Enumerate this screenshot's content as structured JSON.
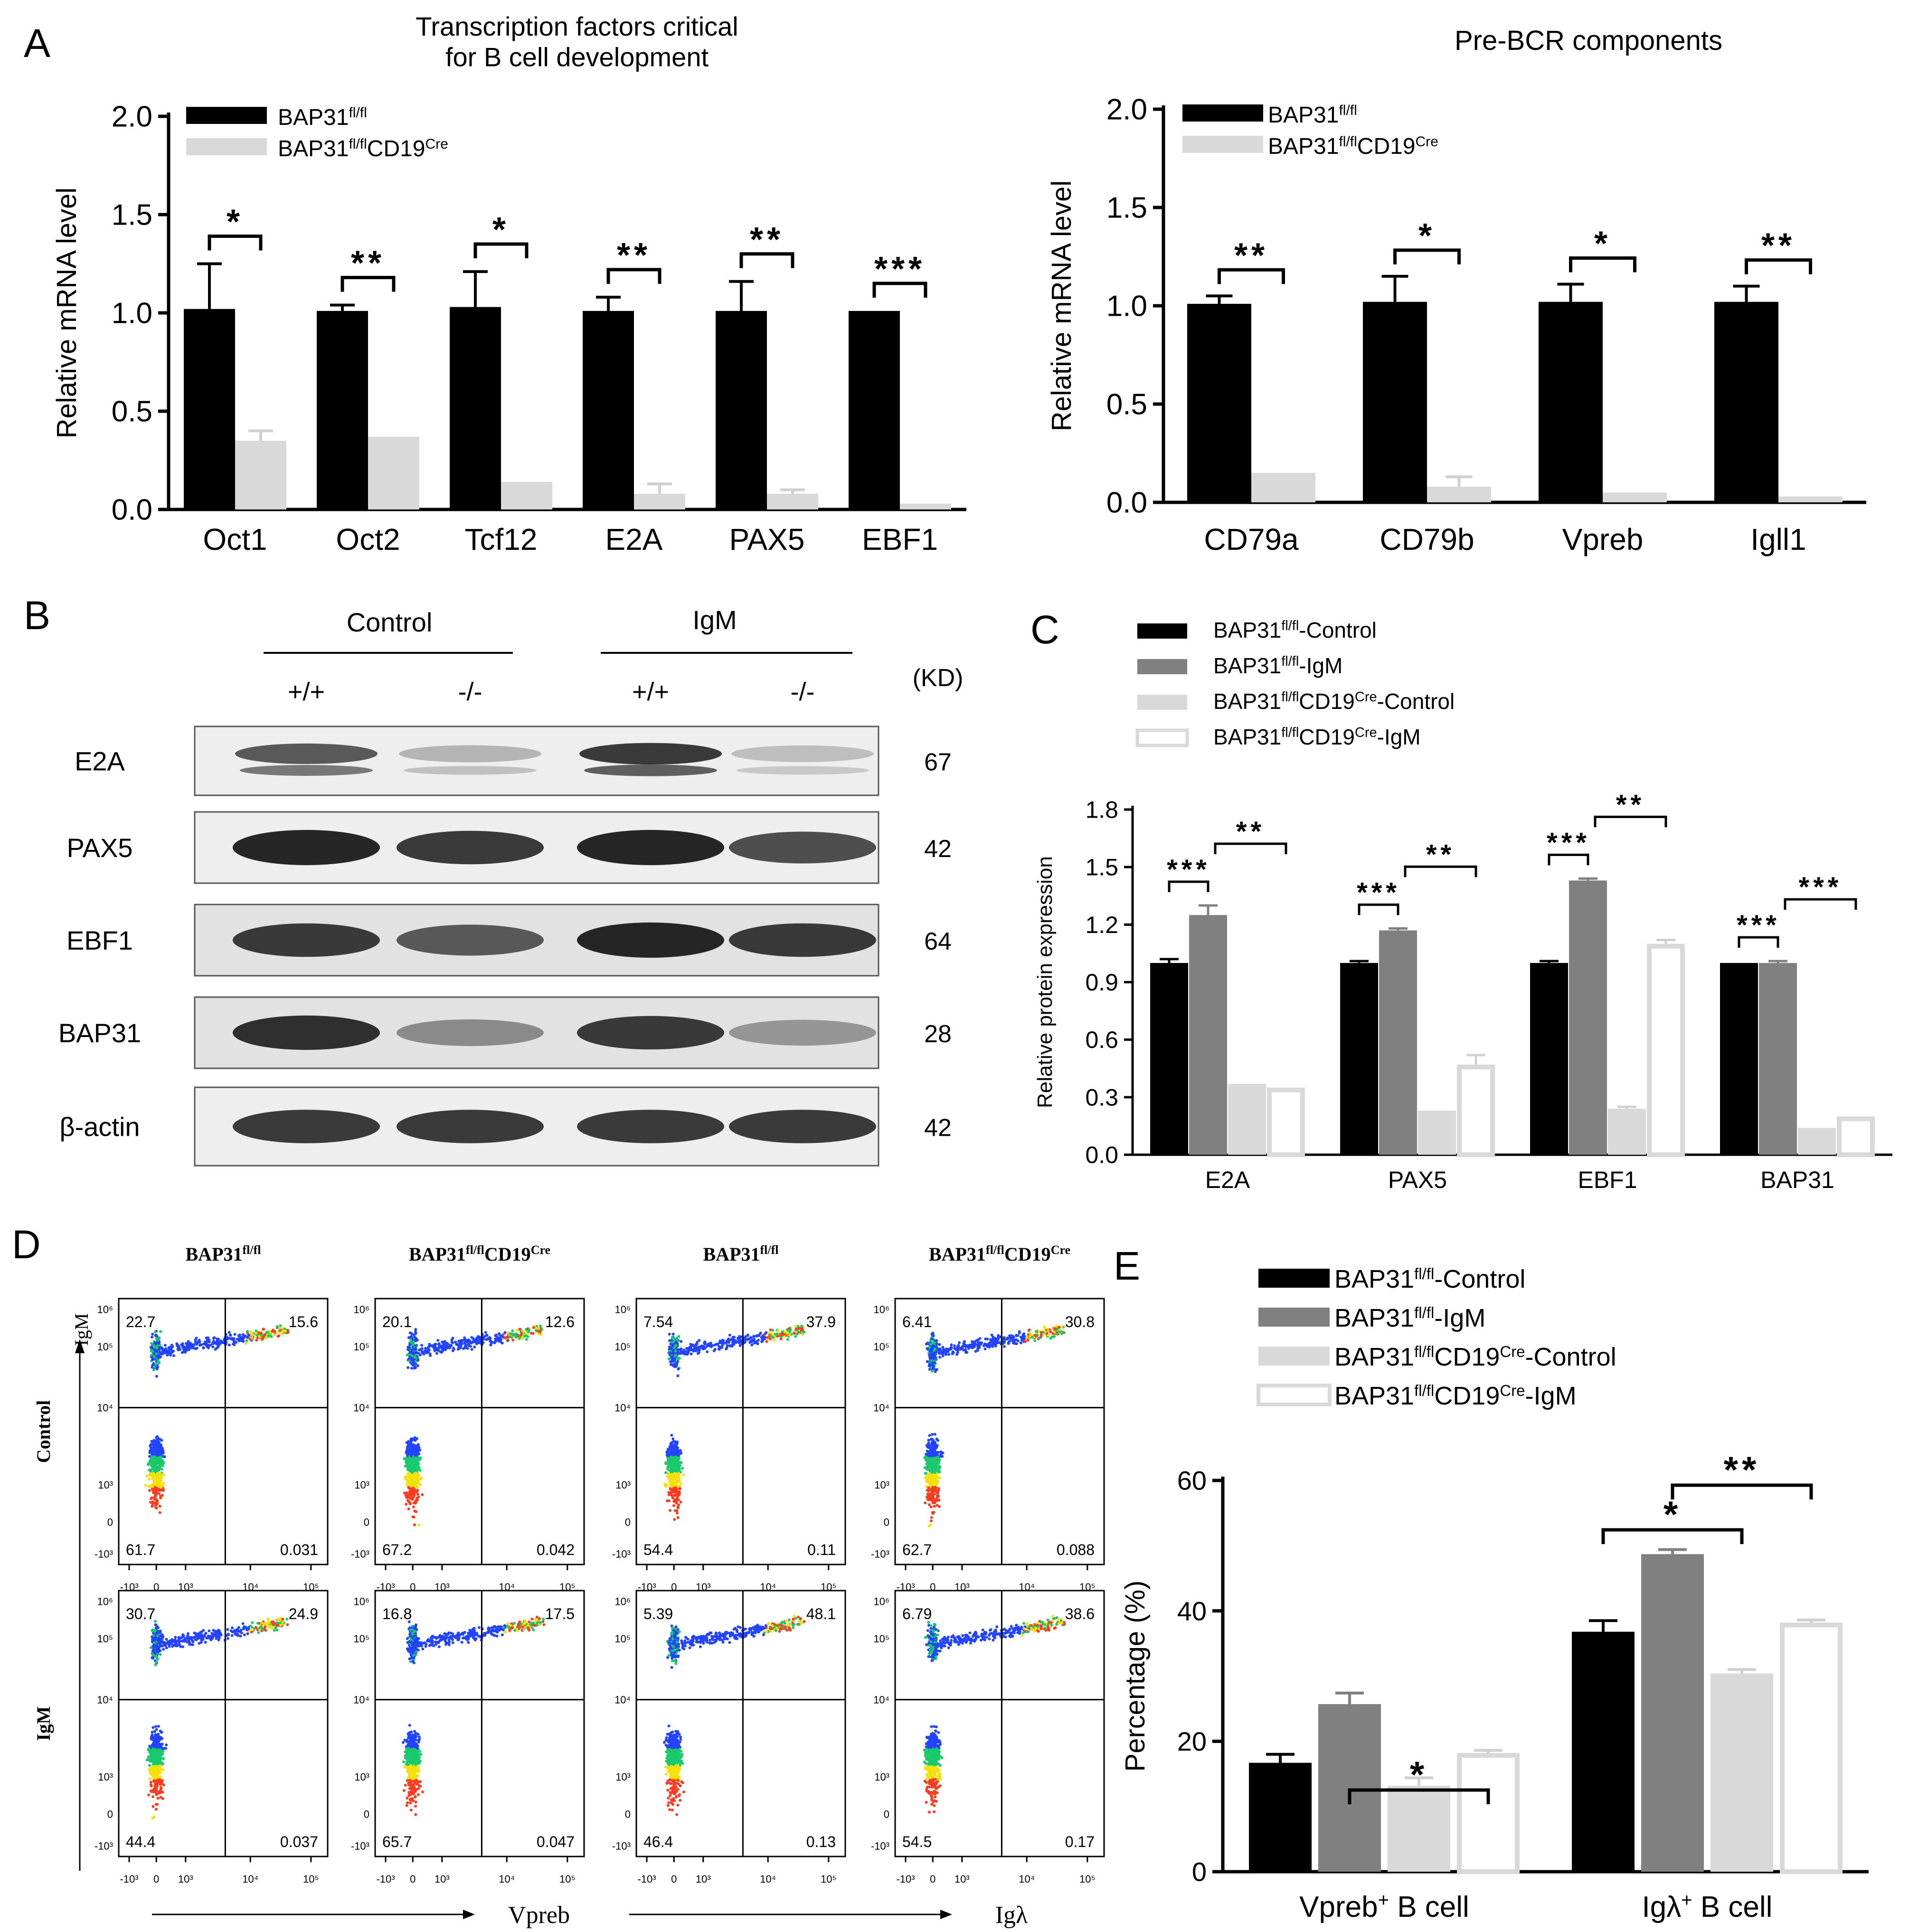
{
  "figure": {
    "panels": {
      "A": "A",
      "B": "B",
      "C": "C",
      "D": "D",
      "E": "E"
    }
  },
  "chart_data": [
    {
      "id": "A1",
      "type": "bar",
      "title_lines": [
        "Transcription factors critical",
        "for B cell development"
      ],
      "ylabel": "Relative mRNA level",
      "xlabel": "",
      "ylim": [
        0,
        2.0
      ],
      "yticks": [
        "0.0",
        "0.5",
        "1.0",
        "1.5",
        "2.0"
      ],
      "categories": [
        "Oct1",
        "Oct2",
        "Tcf12",
        "E2A",
        "PAX5",
        "EBF1"
      ],
      "series": [
        {
          "name_base": "BAP31",
          "name_sup": "fl/fl",
          "name_post": "",
          "color": "#000000",
          "values": [
            1.02,
            1.01,
            1.03,
            1.01,
            1.01,
            1.01
          ],
          "errors": [
            0.23,
            0.03,
            0.18,
            0.07,
            0.15,
            0.0
          ]
        },
        {
          "name_base": "BAP31",
          "name_sup": "fl/fl",
          "name_post": "CD19",
          "name_sup2": "Cre",
          "color": "#d9d9d9",
          "values": [
            0.35,
            0.37,
            0.14,
            0.08,
            0.08,
            0.03
          ],
          "errors": [
            0.05,
            0.0,
            0.0,
            0.05,
            0.02,
            0.0
          ]
        }
      ],
      "significance": [
        "*",
        "**",
        "*",
        "**",
        "**",
        "***"
      ]
    },
    {
      "id": "A2",
      "type": "bar",
      "title_lines": [
        "Pre-BCR components"
      ],
      "ylabel": "Relative mRNA level",
      "xlabel": "",
      "ylim": [
        0,
        2.0
      ],
      "yticks": [
        "0.0",
        "0.5",
        "1.0",
        "1.5",
        "2.0"
      ],
      "categories": [
        "CD79a",
        "CD79b",
        "Vpreb",
        "Igll1"
      ],
      "series": [
        {
          "name_base": "BAP31",
          "name_sup": "fl/fl",
          "name_post": "",
          "color": "#000000",
          "values": [
            1.01,
            1.02,
            1.02,
            1.02
          ],
          "errors": [
            0.04,
            0.13,
            0.09,
            0.08
          ]
        },
        {
          "name_base": "BAP31",
          "name_sup": "fl/fl",
          "name_post": "CD19",
          "name_sup2": "Cre",
          "color": "#d9d9d9",
          "values": [
            0.15,
            0.08,
            0.05,
            0.03
          ],
          "errors": [
            0.0,
            0.05,
            0.0,
            0.0
          ]
        }
      ],
      "significance": [
        "**",
        "*",
        "*",
        "**"
      ]
    },
    {
      "id": "C",
      "type": "bar",
      "title_lines": [],
      "ylabel": "Relative protein expression",
      "xlabel": "",
      "ylim": [
        0,
        1.8
      ],
      "yticks": [
        "0.0",
        "0.3",
        "0.6",
        "0.9",
        "1.2",
        "1.5",
        "1.8"
      ],
      "categories": [
        "E2A",
        "PAX5",
        "EBF1",
        "BAP31"
      ],
      "series": [
        {
          "name_base": "BAP31",
          "name_sup": "fl/fl",
          "name_post": "-Control",
          "color": "#000000",
          "values": [
            1.0,
            1.0,
            1.0,
            1.0
          ],
          "errors": [
            0.02,
            0.01,
            0.01,
            0.0
          ]
        },
        {
          "name_base": "BAP31",
          "name_sup": "fl/fl",
          "name_post": "-IgM",
          "color": "#808080",
          "values": [
            1.25,
            1.17,
            1.43,
            1.0
          ],
          "errors": [
            0.05,
            0.01,
            0.01,
            0.01
          ]
        },
        {
          "name_base": "BAP31",
          "name_sup": "fl/fl",
          "name_post": "CD19",
          "name_sup2": "Cre",
          "name_post2": "-Control",
          "color": "#d9d9d9",
          "values": [
            0.37,
            0.23,
            0.24,
            0.14
          ],
          "errors": [
            0.0,
            0.0,
            0.01,
            0.0
          ]
        },
        {
          "name_base": "BAP31",
          "name_sup": "fl/fl",
          "name_post": "CD19",
          "name_sup2": "Cre",
          "name_post2": "-IgM",
          "color": "#ffffff",
          "values": [
            0.35,
            0.47,
            1.1,
            0.2
          ],
          "errors": [
            0.0,
            0.05,
            0.02,
            0.0
          ]
        }
      ],
      "significance": [
        {
          "inner": "***",
          "outer": "**"
        },
        {
          "inner": "***",
          "outer": "**"
        },
        {
          "inner": "***",
          "outer": "**"
        },
        {
          "inner": "***",
          "outer": "***"
        }
      ]
    },
    {
      "id": "E",
      "type": "bar",
      "title_lines": [],
      "ylabel": "Percentage (%)",
      "xlabel": "",
      "ylim": [
        0,
        60
      ],
      "yticks": [
        "0",
        "20",
        "40",
        "60"
      ],
      "categories": [
        {
          "pre": "Vpreb",
          "sup": "+",
          "post": " B cell"
        },
        {
          "pre": "Igλ",
          "sup": "+",
          "post": " B cell"
        }
      ],
      "series": [
        {
          "name_base": "BAP31",
          "name_sup": "fl/fl",
          "name_post": "-Control",
          "color": "#000000",
          "values": [
            16.7,
            36.8
          ],
          "errors": [
            1.3,
            1.7
          ]
        },
        {
          "name_base": "BAP31",
          "name_sup": "fl/fl",
          "name_post": "-IgM",
          "color": "#808080",
          "values": [
            25.7,
            48.7
          ],
          "errors": [
            1.7,
            0.7
          ]
        },
        {
          "name_base": "BAP31",
          "name_sup": "fl/fl",
          "name_post": "CD19",
          "name_sup2": "Cre",
          "name_post2": "-Control",
          "color": "#d9d9d9",
          "values": [
            13.2,
            30.4
          ],
          "errors": [
            1.2,
            0.6
          ]
        },
        {
          "name_base": "BAP31",
          "name_sup": "fl/fl",
          "name_post": "CD19",
          "name_sup2": "Cre",
          "name_post2": "-IgM",
          "color": "#ffffff",
          "values": [
            18.2,
            38.2
          ],
          "errors": [
            0.4,
            0.4
          ]
        }
      ],
      "significance": [
        {
          "outer": "*"
        },
        {
          "inner": "*",
          "outer": "**"
        }
      ]
    }
  ],
  "western": {
    "group_labels": [
      "Control",
      "IgM"
    ],
    "lane_labels": [
      "+/+",
      "-/-",
      "+/+",
      "-/-"
    ],
    "unit_label": "(KD)",
    "rows": [
      {
        "name": "E2A",
        "kd": "67",
        "intensity": [
          0.7,
          0.25,
          0.85,
          0.2
        ],
        "double": true
      },
      {
        "name": "PAX5",
        "kd": "42",
        "intensity": [
          0.95,
          0.85,
          0.95,
          0.75
        ],
        "double": false
      },
      {
        "name": "EBF1",
        "kd": "64",
        "intensity": [
          0.85,
          0.7,
          0.95,
          0.85
        ],
        "double": false
      },
      {
        "name": "BAP31",
        "kd": "28",
        "intensity": [
          0.9,
          0.45,
          0.85,
          0.4
        ],
        "double": false
      },
      {
        "name": "β-actin",
        "kd": "42",
        "intensity": [
          0.85,
          0.85,
          0.85,
          0.85
        ],
        "double": false
      }
    ]
  },
  "flow": {
    "columns": [
      {
        "base": "BAP31",
        "sup": "fl/fl",
        "post": "",
        "sup2": ""
      },
      {
        "base": "BAP31",
        "sup": "fl/fl",
        "post": "CD19",
        "sup2": "Cre"
      },
      {
        "base": "BAP31",
        "sup": "fl/fl",
        "post": "",
        "sup2": ""
      },
      {
        "base": "BAP31",
        "sup": "fl/fl",
        "post": "CD19",
        "sup2": "Cre"
      }
    ],
    "row_labels": [
      "Control",
      "IgM"
    ],
    "y_axis_label": "IgM",
    "x_axis_labels": [
      "Vpreb",
      "Igλ"
    ],
    "quadrants": [
      [
        [
          "22.7",
          "15.6",
          "61.7",
          "0.031"
        ],
        [
          "20.1",
          "12.6",
          "67.2",
          "0.042"
        ],
        [
          "7.54",
          "37.9",
          "54.4",
          "0.11"
        ],
        [
          "6.41",
          "30.8",
          "62.7",
          "0.088"
        ]
      ],
      [
        [
          "30.7",
          "24.9",
          "44.4",
          "0.037"
        ],
        [
          "16.8",
          "17.5",
          "65.7",
          "0.047"
        ],
        [
          "5.39",
          "48.1",
          "46.4",
          "0.13"
        ],
        [
          "6.79",
          "38.6",
          "54.5",
          "0.17"
        ]
      ]
    ],
    "ticks": [
      "-10³",
      "0",
      "10³",
      "10⁴",
      "10⁵"
    ],
    "yticks": [
      "-10³",
      "0",
      "10³",
      "10⁴",
      "10⁵",
      "10⁶"
    ]
  }
}
